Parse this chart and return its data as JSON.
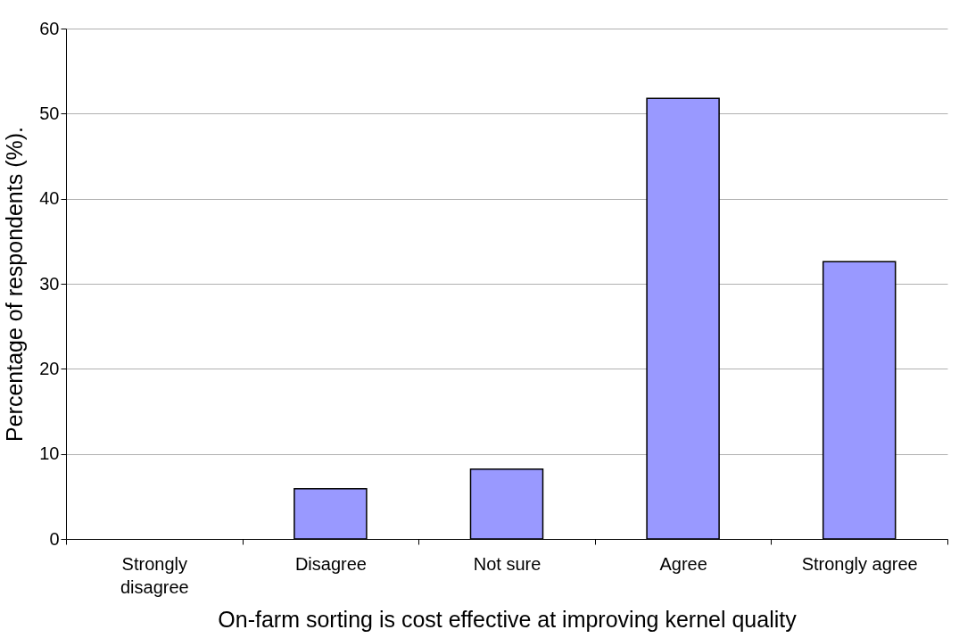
{
  "chart_data": {
    "type": "bar",
    "xlabel": "On-farm sorting is cost effective at improving kernel quality",
    "ylabel": "Percentage of respondents (%).",
    "categories": [
      "Strongly disagree",
      "Disagree",
      "Not sure",
      "Agree",
      "Strongly agree"
    ],
    "values": [
      0,
      5.9,
      8.2,
      51.8,
      32.6
    ],
    "color": "#9999ff",
    "ylim": [
      0,
      60
    ],
    "yticks": [
      0,
      10,
      20,
      30,
      40,
      50,
      60
    ],
    "grid": "y"
  }
}
